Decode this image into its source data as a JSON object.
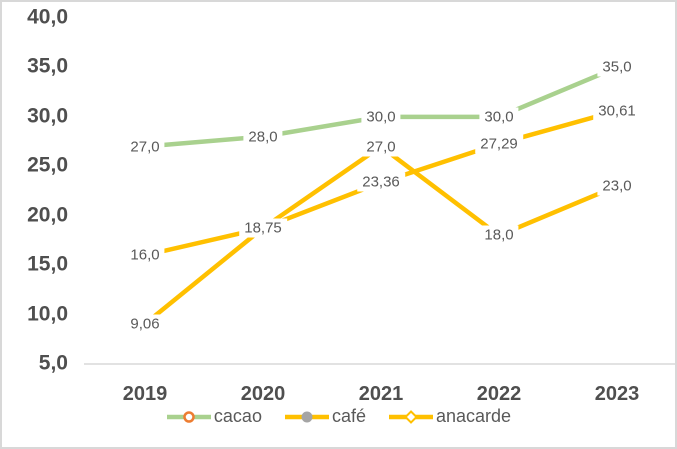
{
  "chart_data": {
    "type": "line",
    "title": "",
    "categories": [
      "2019",
      "2020",
      "2021",
      "2022",
      "2023"
    ],
    "series": [
      {
        "name": "cacao",
        "line_color": "#a9d18e",
        "marker": "hollow-circle",
        "marker_color": "#ed7d31",
        "values": [
          27.0,
          28.0,
          30.0,
          30.0,
          35.0
        ],
        "point_labels": [
          "27,0",
          "28,0",
          "30,0",
          "30,0",
          "35,0"
        ]
      },
      {
        "name": "café",
        "line_color": "#ffc000",
        "marker": "filled-circle",
        "marker_color": "#a5a5a5",
        "values": [
          16.0,
          18.75,
          23.36,
          27.29,
          30.61
        ],
        "point_labels": [
          "16,0",
          "18,75",
          "23,36",
          "27,29",
          "30,61"
        ]
      },
      {
        "name": "anacarde",
        "line_color": "#ffc000",
        "marker": "hollow-diamond",
        "marker_color": "#ffc000",
        "values": [
          9.06,
          18.75,
          27.0,
          18.0,
          23.0
        ],
        "point_labels": [
          "9,06",
          null,
          "27,0",
          "18,0",
          "23,0"
        ]
      }
    ],
    "y_axis": {
      "min": 5,
      "max": 40,
      "step": 5,
      "tick_labels": [
        "40,0",
        "35,0",
        "30,0",
        "25,0",
        "20,0",
        "15,0",
        "10,0",
        "5,0"
      ],
      "tick_values": [
        40,
        35,
        30,
        25,
        20,
        15,
        10,
        5
      ]
    },
    "x_axis": {
      "tick_labels": [
        "2019",
        "2020",
        "2021",
        "2022",
        "2023"
      ]
    },
    "legend": {
      "position": "bottom",
      "entries": [
        "cacao",
        "café",
        "anacarde"
      ]
    },
    "grid": false,
    "axis_line_color": "#d9d9d9",
    "background_color": "#ffffff"
  }
}
